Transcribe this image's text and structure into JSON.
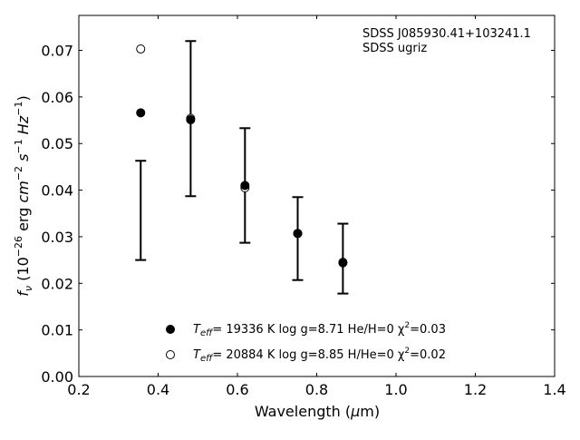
{
  "chart_data": {
    "type": "scatter",
    "title": "",
    "xlabel": "Wavelength (μm)",
    "ylabel": "fν (10⁻²⁶ erg cm⁻² s⁻¹ Hz⁻¹)",
    "xlim": [
      0.2,
      1.4
    ],
    "ylim": [
      0.0,
      0.0775
    ],
    "x_ticks": [
      0.2,
      0.4,
      0.6,
      0.8,
      1.0,
      1.2,
      1.4
    ],
    "x_tick_labels": [
      "0.2",
      "0.4",
      "0.6",
      "0.8",
      "1.0",
      "1.2",
      "1.4"
    ],
    "y_ticks": [
      0.0,
      0.01,
      0.02,
      0.03,
      0.04,
      0.05,
      0.06,
      0.07
    ],
    "y_tick_labels": [
      "0.00",
      "0.01",
      "0.02",
      "0.03",
      "0.04",
      "0.05",
      "0.06",
      "0.07"
    ],
    "grid": false,
    "legend_position": "bottom-center",
    "annotation": {
      "line1": "SDSS J085930.41+103241.1",
      "line2": "SDSS ugriz",
      "position": "top-right"
    },
    "errorbars": [
      {
        "x": 0.356,
        "low": 0.025,
        "high": 0.0463
      },
      {
        "x": 0.482,
        "low": 0.0387,
        "high": 0.072
      },
      {
        "x": 0.619,
        "low": 0.0287,
        "high": 0.0533
      },
      {
        "x": 0.752,
        "low": 0.0207,
        "high": 0.0385
      },
      {
        "x": 0.866,
        "low": 0.0178,
        "high": 0.0328
      }
    ],
    "series": [
      {
        "name": "He/H=0",
        "marker": "filled-circle",
        "color": "#000000",
        "x": [
          0.356,
          0.482,
          0.619,
          0.752,
          0.866
        ],
        "y": [
          0.0566,
          0.0551,
          0.041,
          0.0307,
          0.0245
        ],
        "legend": {
          "teff_label": "T",
          "teff_sub": "eff",
          "text": "= 19336 K  log g=8.71  He/H=0  χ",
          "chi_sup": "2",
          "chi_val": "=0.03"
        }
      },
      {
        "name": "H/He=0",
        "marker": "open-circle",
        "color": "#000000",
        "x": [
          0.356,
          0.482,
          0.619,
          0.752,
          0.866
        ],
        "y": [
          0.0703,
          0.0554,
          0.0405,
          0.0307,
          0.0244
        ],
        "legend": {
          "teff_label": "T",
          "teff_sub": "eff",
          "text": "= 20884 K  log g=8.85  H/He=0  χ",
          "chi_sup": "2",
          "chi_val": "=0.02"
        }
      }
    ]
  }
}
